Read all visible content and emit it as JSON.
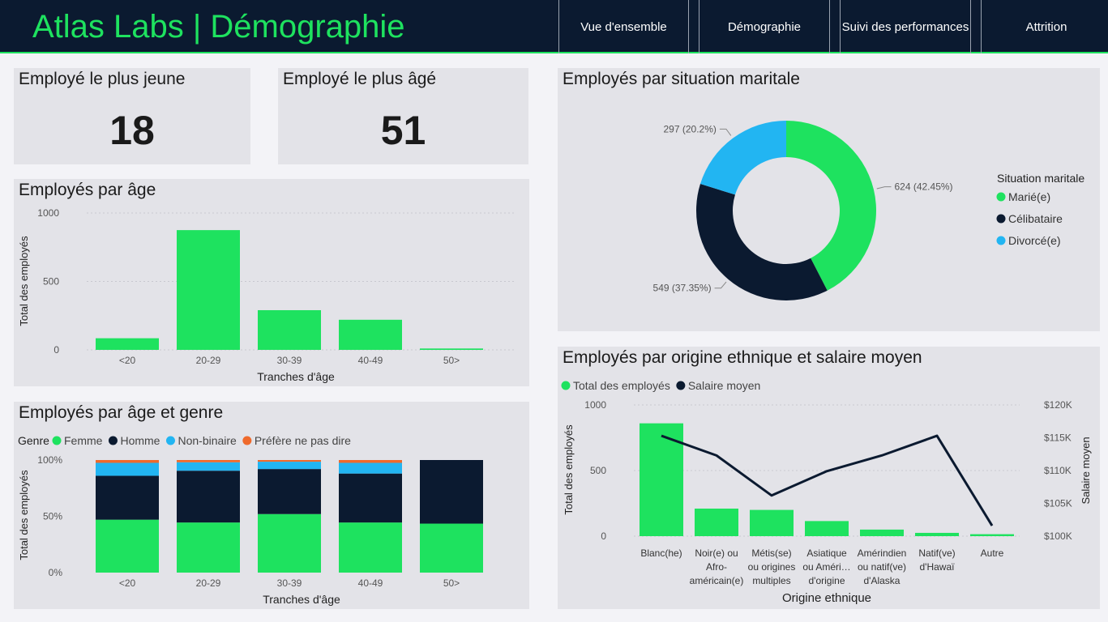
{
  "header": {
    "title": "Atlas Labs | Démographie",
    "nav": [
      "Vue d'ensemble",
      "Démographie",
      "Suivi des performances",
      "Attrition"
    ]
  },
  "kpis": {
    "youngest": {
      "title": "Employé le plus jeune",
      "value": "18"
    },
    "oldest": {
      "title": "Employé le plus âgé",
      "value": "51"
    }
  },
  "colors": {
    "green": "#1ee25f",
    "navy": "#0b1a30",
    "blue": "#22b5f2",
    "orange": "#ef6a2c"
  },
  "cards": {
    "age": {
      "title": "Employés par âge"
    },
    "age_gender": {
      "title": "Employés par âge et genre"
    },
    "marital": {
      "title": "Employés par situation maritale"
    },
    "ethnic": {
      "title": "Employés par origine ethnique et salaire moyen"
    }
  },
  "chart_data": [
    {
      "id": "age",
      "type": "bar",
      "categories": [
        "<20",
        "20-29",
        "30-39",
        "40-49",
        "50>"
      ],
      "values": [
        85,
        875,
        290,
        220,
        10
      ],
      "xlabel": "Tranches d'âge",
      "ylabel": "Total des employés",
      "ylim": [
        0,
        1000
      ],
      "yticks": [
        "0",
        "500",
        "1000"
      ],
      "grid": true
    },
    {
      "id": "age_gender",
      "type": "bar",
      "stacked": "percent",
      "legend_title": "Genre",
      "categories": [
        "<20",
        "20-29",
        "30-39",
        "40-49",
        "50>"
      ],
      "series": [
        {
          "name": "Femme",
          "color": "#1ee25f",
          "values": [
            47,
            44.5,
            52,
            44.5,
            43.5
          ]
        },
        {
          "name": "Homme",
          "color": "#0b1a30",
          "values": [
            39,
            46,
            40,
            43.5,
            56.5
          ]
        },
        {
          "name": "Non-binaire",
          "color": "#22b5f2",
          "values": [
            11.5,
            7.5,
            6.5,
            9.5,
            0
          ]
        },
        {
          "name": "Préfère ne pas dire",
          "color": "#ef6a2c",
          "values": [
            2.5,
            2,
            1.5,
            2.5,
            0
          ]
        }
      ],
      "xlabel": "Tranches d'âge",
      "ylabel": "Total des employés",
      "yticks": [
        "0%",
        "50%",
        "100%"
      ],
      "ylim": [
        0,
        100
      ]
    },
    {
      "id": "marital",
      "type": "pie",
      "donut": true,
      "legend_title": "Situation maritale",
      "legend_position": "right",
      "slices": [
        {
          "name": "Marié(e)",
          "value": 624,
          "label": "624 (42.45%)",
          "color": "#1ee25f"
        },
        {
          "name": "Célibataire",
          "value": 549,
          "label": "549 (37.35%)",
          "color": "#0b1a30"
        },
        {
          "name": "Divorcé(e)",
          "value": 297,
          "label": "297 (20.2%)",
          "color": "#22b5f2"
        }
      ]
    },
    {
      "id": "ethnic",
      "type": "bar",
      "combo": "bar+line",
      "categories": [
        [
          "Blanc(he)"
        ],
        [
          "Noir(e) ou",
          "Afro-",
          "américain(e)"
        ],
        [
          "Métis(se)",
          "ou origines",
          "multiples"
        ],
        [
          "Asiatique",
          "ou Améri…",
          "d'origine"
        ],
        [
          "Amérindien",
          "ou natif(ve)",
          "d'Alaska"
        ],
        [
          "Natif(ve)",
          "d'Hawaï"
        ],
        [
          "Autre"
        ]
      ],
      "series": [
        {
          "name": "Total des employés",
          "type": "bar",
          "color": "#1ee25f",
          "values": [
            860,
            210,
            200,
            115,
            50,
            25,
            15
          ]
        },
        {
          "name": "Salaire moyen",
          "type": "line",
          "color": "#0b1a30",
          "values": [
            115300,
            112300,
            106200,
            109900,
            112300,
            115300,
            101600
          ]
        }
      ],
      "xlabel": "Origine ethnique",
      "ylabel": "Total des employés",
      "ylabel2": "Salaire moyen",
      "ylim": [
        0,
        1000
      ],
      "ylim2": [
        100000,
        120000
      ],
      "yticks": [
        "0",
        "500",
        "1000"
      ],
      "yticks2": [
        "$100K",
        "$105K",
        "$110K",
        "$115K",
        "$120K"
      ],
      "legend_position": "top-left"
    }
  ]
}
